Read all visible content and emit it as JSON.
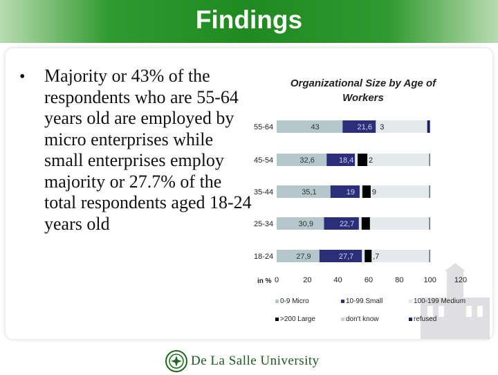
{
  "slide": {
    "title": "Findings",
    "bullet": "Majority or 43% of the respondents who are 55-64 years old are employed by micro enterprises while small enterprises employ majority or 27.7% of the total respondents aged 18-24 years old",
    "footer": "De La Salle University"
  },
  "chart_data": {
    "type": "bar",
    "orientation": "horizontal",
    "stacked": true,
    "title": "Organizational Size by Age of Workers",
    "categories": [
      "55-64",
      "45-54",
      "35-44",
      "25-34",
      "18-24"
    ],
    "xlabel": "in %",
    "xlim": [
      0,
      120
    ],
    "xticks": [
      0,
      20,
      40,
      60,
      80,
      100,
      120
    ],
    "series": [
      {
        "name": "0-9 Micro",
        "color": "#b4c8cc",
        "values": [
          43,
          32.6,
          35.1,
          30.9,
          27.9
        ],
        "labels": [
          "43",
          "32,6",
          "35,1",
          "30,9",
          "27,9"
        ]
      },
      {
        "name": "10-99 Small",
        "color": "#2b2f7a",
        "values": [
          21.6,
          18.4,
          19,
          22.7,
          27.7
        ],
        "labels": [
          "21,6",
          "18,4",
          "19",
          "22,7",
          "27,7"
        ]
      },
      {
        "name": "100-199 Medium",
        "color": "#e4eaec",
        "values": [
          null,
          null,
          null,
          null,
          null
        ],
        "labels": [
          "",
          "",
          "",
          "",
          ""
        ]
      },
      {
        "name": ">200 Large",
        "color": "#000000",
        "values": [
          null,
          null,
          null,
          null,
          null
        ],
        "labels": [
          "3",
          "2",
          "9",
          "",
          ",7"
        ]
      },
      {
        "name": "don't know",
        "color": "#c6d4d6",
        "values": [
          null,
          null,
          null,
          null,
          null
        ],
        "labels": [
          "",
          "",
          "",
          "",
          ""
        ]
      },
      {
        "name": "refused",
        "color": "#1a1f6e",
        "values": [
          null,
          null,
          null,
          null,
          null
        ],
        "labels": [
          "",
          "",
          "",
          "",
          ""
        ]
      }
    ],
    "grid": false,
    "legend": "bottom"
  }
}
